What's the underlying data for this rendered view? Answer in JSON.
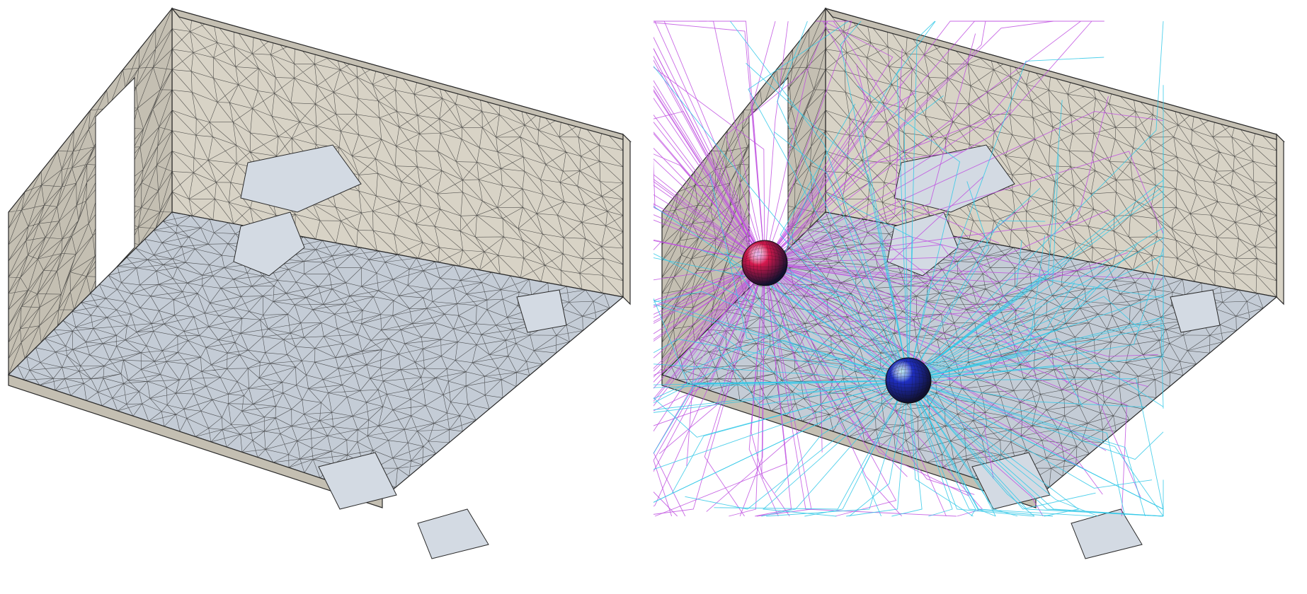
{
  "figure": {
    "panels": [
      {
        "id": "left",
        "content": "room-mesh",
        "overlays": []
      },
      {
        "id": "right",
        "content": "room-mesh",
        "overlays": [
          "source-sphere",
          "receiver-sphere",
          "ray-paths"
        ]
      }
    ],
    "colors": {
      "background": "#ffffff",
      "wall": "#d8d3c6",
      "wall_shade": "#c4bfb2",
      "floor": "#c4ccd6",
      "floor_light": "#d3dae3",
      "mesh_edge": "#2a2a2a",
      "source_sphere": "#d6184d",
      "receiver_sphere": "#1f2fc4",
      "rays_primary": "#c050e0",
      "rays_secondary": "#30c8e8"
    },
    "mesh": {
      "style": "triangulated-wireframe"
    },
    "rays": {
      "source_ray_count": 140,
      "receiver_ray_count": 110
    }
  }
}
